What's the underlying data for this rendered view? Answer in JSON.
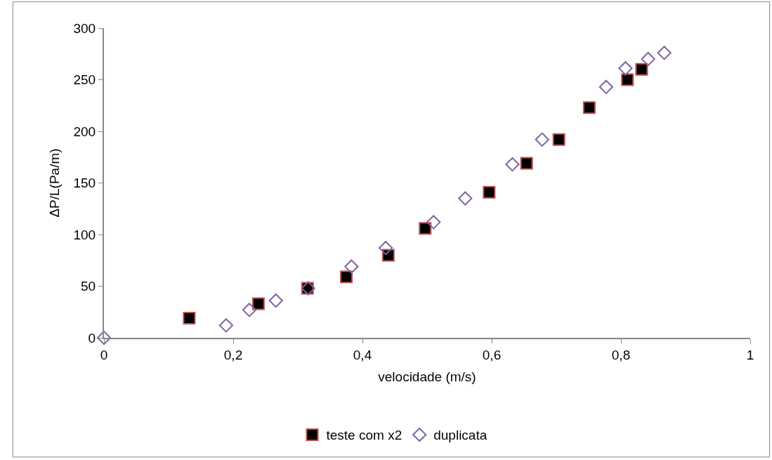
{
  "chart_data": {
    "type": "scatter",
    "xlabel": "velocidade (m/s)",
    "ylabel": "ΔP/L(Pa/m)",
    "xlim": [
      0,
      1
    ],
    "xticks": [
      {
        "value": 0,
        "label": "0"
      },
      {
        "value": 0.2,
        "label": "0,2"
      },
      {
        "value": 0.4,
        "label": "0,4"
      },
      {
        "value": 0.6,
        "label": "0,6"
      },
      {
        "value": 0.8,
        "label": "0,8"
      },
      {
        "value": 1,
        "label": "1"
      }
    ],
    "ylim": [
      0,
      300
    ],
    "yticks": [
      0,
      50,
      100,
      150,
      200,
      250,
      300
    ],
    "legend": "bottom",
    "series": [
      {
        "name": "teste com x2",
        "color": "#000000",
        "marker": "square",
        "x": [
          0.132,
          0.239,
          0.315,
          0.375,
          0.44,
          0.497,
          0.596,
          0.654,
          0.704,
          0.751,
          0.81,
          0.832
        ],
        "values": [
          19,
          33,
          48,
          59,
          80,
          106,
          141,
          169,
          192,
          223,
          250,
          260
        ]
      },
      {
        "name": "duplicata",
        "color": "#8064a2",
        "marker": "diamond",
        "x": [
          0,
          0.189,
          0.225,
          0.266,
          0.316,
          0.383,
          0.436,
          0.51,
          0.559,
          0.632,
          0.678,
          0.777,
          0.807,
          0.842,
          0.867
        ],
        "values": [
          0,
          12,
          27,
          36,
          48,
          69,
          87,
          112,
          135,
          168,
          192,
          243,
          261,
          270,
          276
        ]
      }
    ]
  }
}
